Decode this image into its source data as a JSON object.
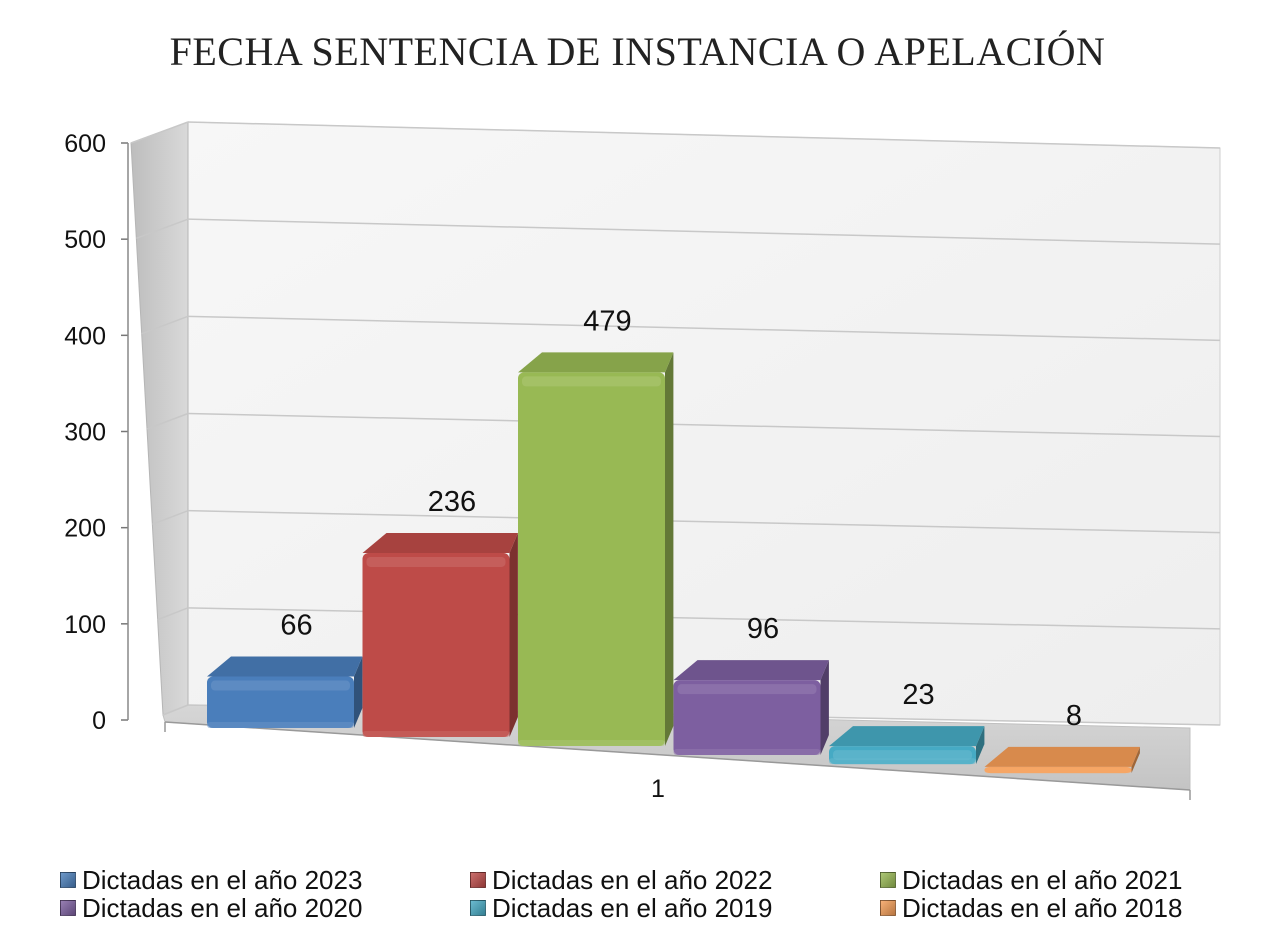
{
  "chart_data": {
    "type": "bar",
    "title": "FECHA SENTENCIA DE INSTANCIA O APELACIÓN",
    "categories": [
      "1"
    ],
    "series": [
      {
        "name": "Dictadas en el año 2023",
        "values": [
          66
        ],
        "color": "#4a7ebb"
      },
      {
        "name": "Dictadas en el año 2022",
        "values": [
          236
        ],
        "color": "#be4b48"
      },
      {
        "name": "Dictadas en el año 2021",
        "values": [
          479
        ],
        "color": "#98b954"
      },
      {
        "name": "Dictadas en el año 2020",
        "values": [
          96
        ],
        "color": "#7d5fa0"
      },
      {
        "name": "Dictadas en el año 2019",
        "values": [
          23
        ],
        "color": "#46aac4"
      },
      {
        "name": "Dictadas en el año 2018",
        "values": [
          8
        ],
        "color": "#f59d56"
      }
    ],
    "ylim": [
      0,
      600
    ],
    "yticks": [
      0,
      100,
      200,
      300,
      400,
      500,
      600
    ],
    "grid": true,
    "legend_position": "bottom",
    "style": "3d-columns"
  }
}
